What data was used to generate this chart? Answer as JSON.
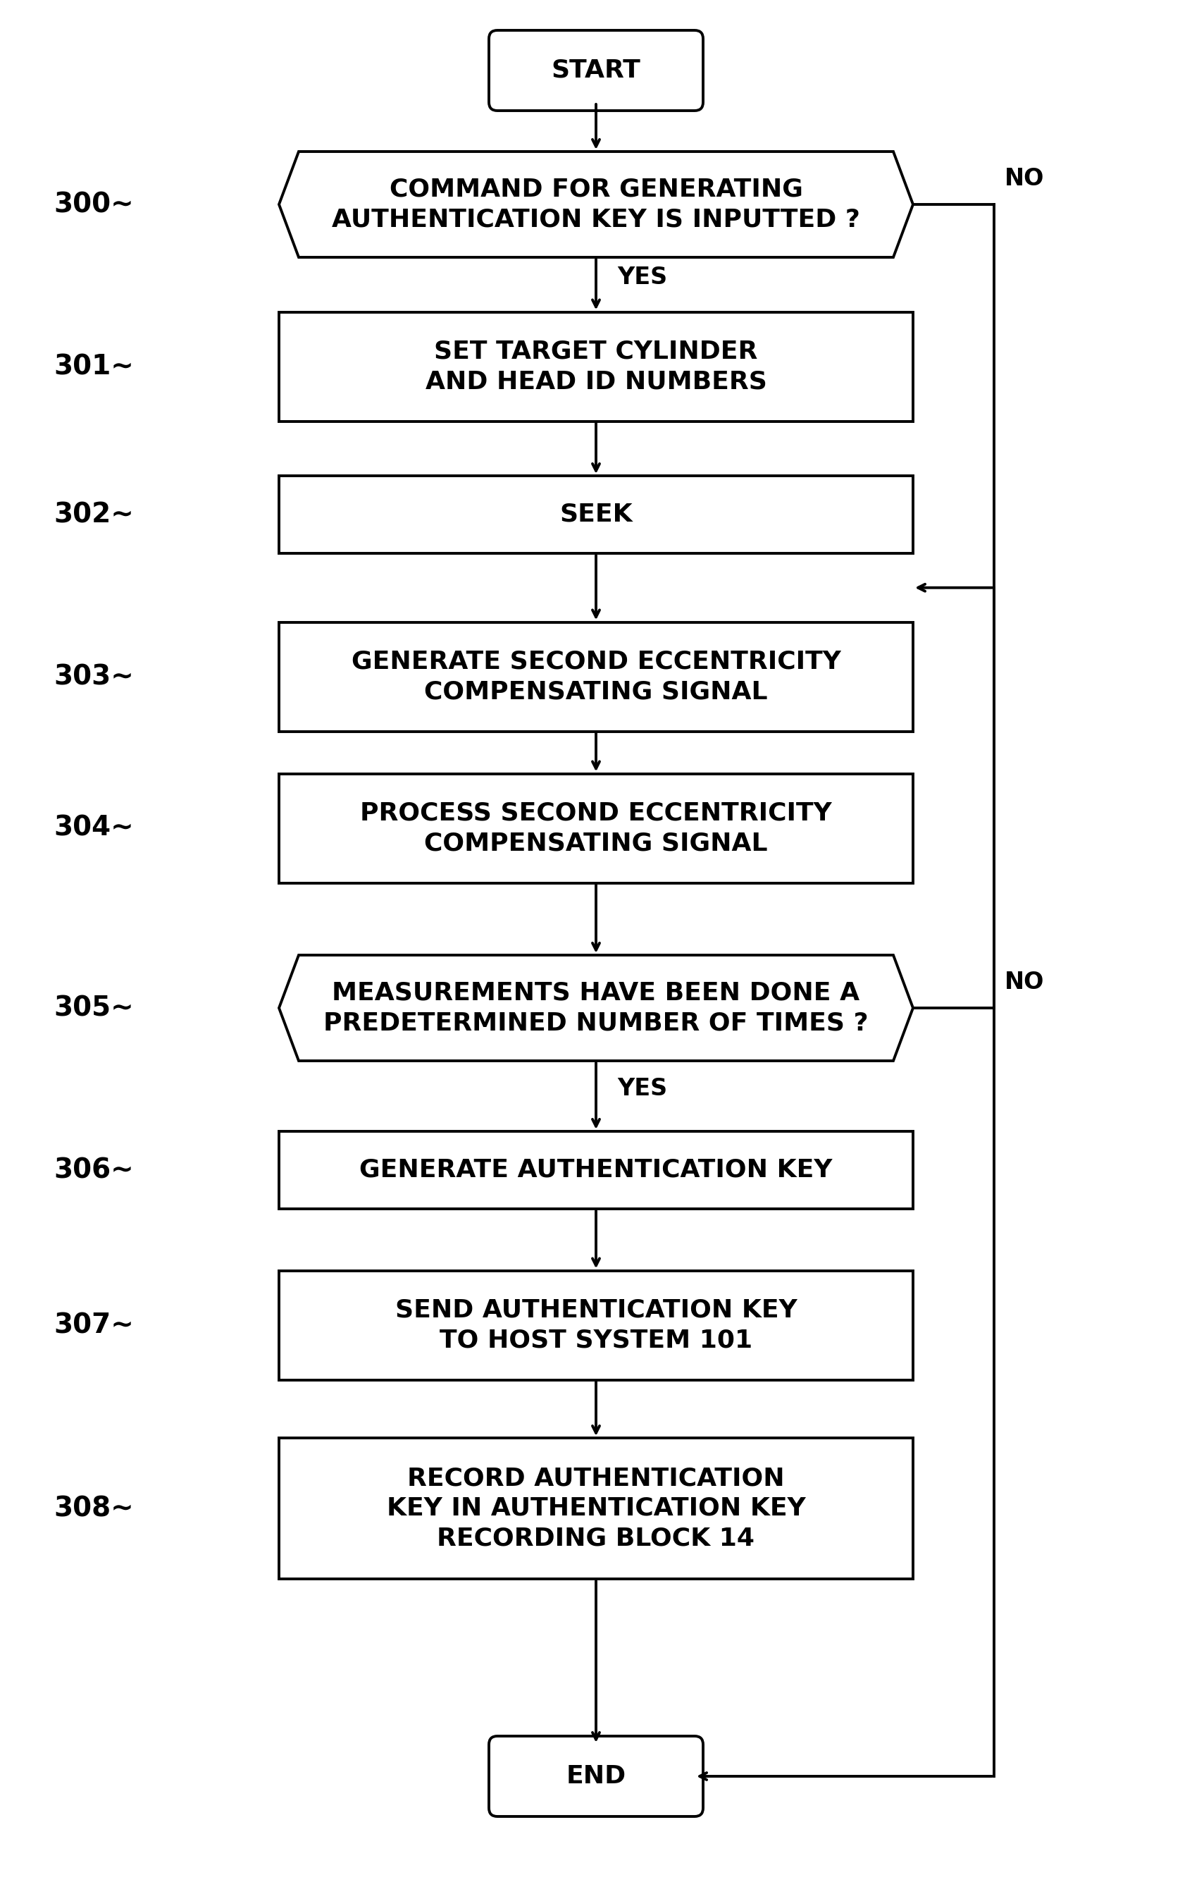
{
  "bg_color": "#ffffff",
  "nodes": [
    {
      "id": "start",
      "type": "terminal",
      "label_num": "",
      "text": "START"
    },
    {
      "id": "300",
      "type": "hexagon",
      "label_num": "300",
      "text": "COMMAND FOR GENERATING\nAUTHENTICATION KEY IS INPUTTED ?"
    },
    {
      "id": "301",
      "type": "rect",
      "label_num": "301",
      "text": "SET TARGET CYLINDER\nAND HEAD ID NUMBERS"
    },
    {
      "id": "302",
      "type": "rect",
      "label_num": "302",
      "text": "SEEK"
    },
    {
      "id": "303",
      "type": "rect",
      "label_num": "303",
      "text": "GENERATE SECOND ECCENTRICITY\nCOMPENSATING SIGNAL"
    },
    {
      "id": "304",
      "type": "rect",
      "label_num": "304",
      "text": "PROCESS SECOND ECCENTRICITY\nCOMPENSATING SIGNAL"
    },
    {
      "id": "305",
      "type": "hexagon",
      "label_num": "305",
      "text": "MEASUREMENTS HAVE BEEN DONE A\nPREDETERMINED NUMBER OF TIMES ?"
    },
    {
      "id": "306",
      "type": "rect",
      "label_num": "306",
      "text": "GENERATE AUTHENTICATION KEY"
    },
    {
      "id": "307",
      "type": "rect",
      "label_num": "307",
      "text": "SEND AUTHENTICATION KEY\nTO HOST SYSTEM 101"
    },
    {
      "id": "308",
      "type": "rect",
      "label_num": "308",
      "text": "RECORD AUTHENTICATION\nKEY IN AUTHENTICATION KEY\nRECORDING BLOCK 14"
    },
    {
      "id": "end",
      "type": "terminal",
      "label_num": "",
      "text": "END"
    }
  ],
  "lw": 2.8,
  "arrow_size": 18
}
